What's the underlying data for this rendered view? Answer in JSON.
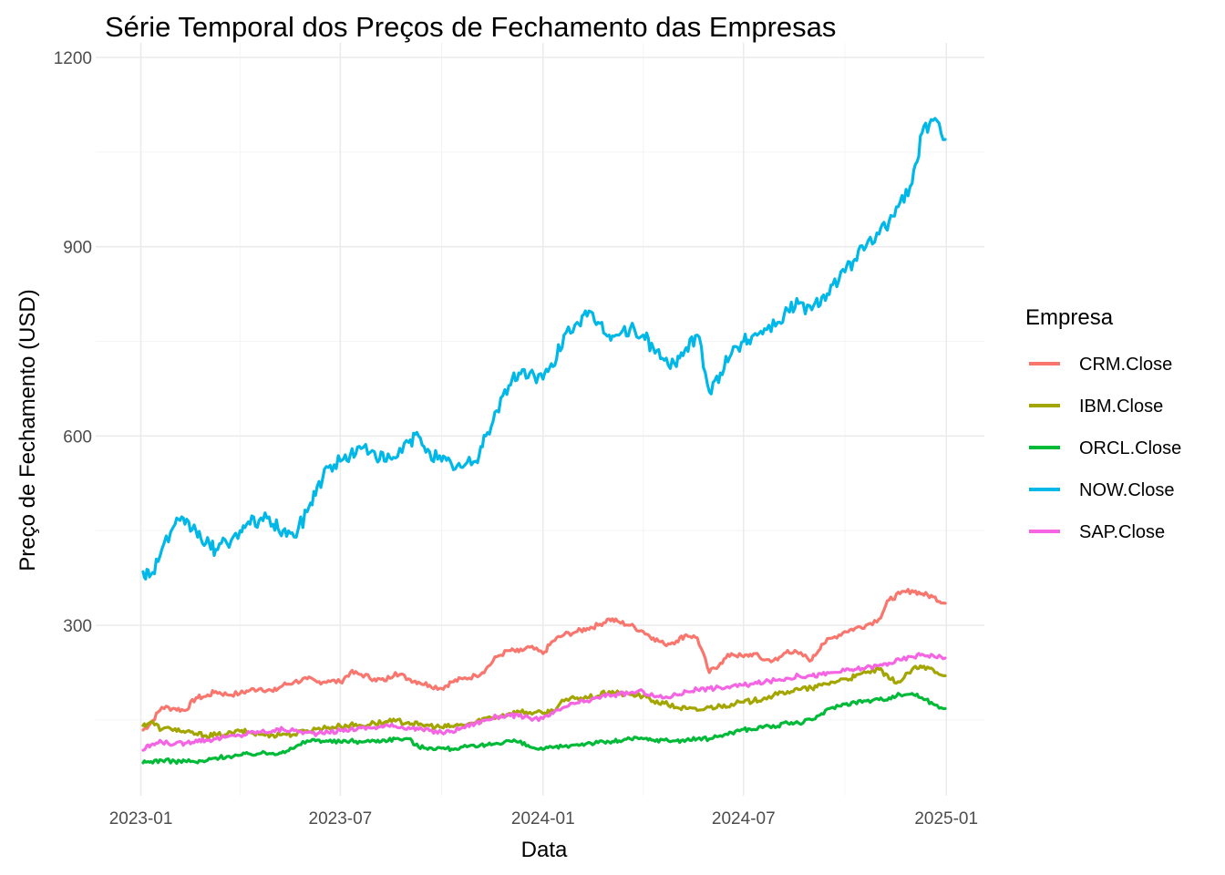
{
  "chart_data": {
    "type": "line",
    "title": "Série Temporal dos Preços de Fechamento das Empresas",
    "xlabel": "Data",
    "ylabel": "Preço de Fechamento (USD)",
    "xlim": [
      "2023-01-03",
      "2024-12-31"
    ],
    "ylim": [
      30,
      1200
    ],
    "x_ticks": [
      "2023-01",
      "2023-07",
      "2024-01",
      "2024-07",
      "2025-01"
    ],
    "y_ticks": [
      300,
      600,
      900,
      1200
    ],
    "grid": true,
    "legend": {
      "title": "Empresa",
      "position": "right"
    },
    "x": [
      "2023-01-03",
      "2023-01-10",
      "2023-01-20",
      "2023-02-01",
      "2023-02-10",
      "2023-02-20",
      "2023-03-01",
      "2023-03-10",
      "2023-03-20",
      "2023-04-01",
      "2023-04-10",
      "2023-04-20",
      "2023-05-01",
      "2023-05-10",
      "2023-05-20",
      "2023-06-01",
      "2023-06-10",
      "2023-06-20",
      "2023-07-01",
      "2023-07-10",
      "2023-07-20",
      "2023-08-01",
      "2023-08-10",
      "2023-08-20",
      "2023-09-01",
      "2023-09-10",
      "2023-09-20",
      "2023-10-01",
      "2023-10-10",
      "2023-10-20",
      "2023-11-01",
      "2023-11-10",
      "2023-11-20",
      "2023-12-01",
      "2023-12-10",
      "2023-12-20",
      "2024-01-01",
      "2024-01-10",
      "2024-01-20",
      "2024-02-01",
      "2024-02-10",
      "2024-02-20",
      "2024-03-01",
      "2024-03-10",
      "2024-03-20",
      "2024-04-01",
      "2024-04-10",
      "2024-04-20",
      "2024-05-01",
      "2024-05-10",
      "2024-05-20",
      "2024-05-31",
      "2024-06-10",
      "2024-06-20",
      "2024-07-01",
      "2024-07-10",
      "2024-07-20",
      "2024-08-01",
      "2024-08-10",
      "2024-08-20",
      "2024-09-01",
      "2024-09-10",
      "2024-09-20",
      "2024-10-01",
      "2024-10-10",
      "2024-10-20",
      "2024-11-01",
      "2024-11-10",
      "2024-11-20",
      "2024-12-01",
      "2024-12-10",
      "2024-12-20",
      "2024-12-31"
    ],
    "series": [
      {
        "name": "CRM.Close",
        "color": "#F8766D",
        "values": [
          134,
          145,
          170,
          168,
          165,
          185,
          187,
          195,
          190,
          192,
          197,
          200,
          195,
          205,
          210,
          215,
          210,
          212,
          210,
          225,
          222,
          215,
          212,
          225,
          215,
          210,
          205,
          200,
          210,
          215,
          220,
          230,
          250,
          260,
          258,
          265,
          255,
          275,
          285,
          290,
          295,
          300,
          310,
          305,
          300,
          290,
          280,
          270,
          275,
          285,
          280,
          225,
          240,
          255,
          250,
          255,
          245,
          245,
          260,
          255,
          245,
          270,
          280,
          290,
          295,
          300,
          310,
          340,
          350,
          355,
          350,
          345,
          335
        ]
      },
      {
        "name": "IBM.Close",
        "color": "#A3A500",
        "values": [
          141,
          147,
          135,
          136,
          130,
          128,
          125,
          126,
          127,
          132,
          130,
          127,
          126,
          128,
          127,
          133,
          136,
          138,
          140,
          142,
          141,
          145,
          146,
          148,
          146,
          142,
          141,
          138,
          140,
          142,
          146,
          153,
          155,
          160,
          163,
          162,
          160,
          165,
          180,
          185,
          185,
          188,
          195,
          192,
          190,
          188,
          180,
          176,
          170,
          168,
          165,
          170,
          172,
          175,
          178,
          180,
          185,
          190,
          195,
          198,
          200,
          205,
          210,
          215,
          218,
          225,
          230,
          215,
          210,
          230,
          233,
          230,
          220
        ]
      },
      {
        "name": "ORCL.Close",
        "color": "#00BA38",
        "values": [
          82,
          84,
          86,
          84,
          85,
          83,
          85,
          90,
          92,
          94,
          96,
          97,
          97,
          100,
          105,
          117,
          118,
          116,
          115,
          117,
          115,
          117,
          118,
          120,
          120,
          107,
          106,
          105,
          104,
          107,
          107,
          110,
          113,
          117,
          115,
          107,
          103,
          106,
          108,
          111,
          113,
          114,
          115,
          117,
          120,
          120,
          118,
          118,
          117,
          118,
          120,
          120,
          125,
          130,
          135,
          135,
          140,
          140,
          145,
          145,
          150,
          160,
          170,
          175,
          178,
          180,
          182,
          185,
          190,
          192,
          185,
          175,
          168
        ]
      },
      {
        "name": "NOW.Close",
        "color": "#00B8E7",
        "values": [
          385,
          380,
          420,
          460,
          460,
          450,
          430,
          420,
          430,
          450,
          460,
          470,
          460,
          450,
          440,
          480,
          520,
          550,
          560,
          570,
          580,
          575,
          560,
          565,
          590,
          600,
          575,
          560,
          555,
          550,
          560,
          600,
          640,
          680,
          700,
          700,
          690,
          710,
          760,
          780,
          790,
          780,
          760,
          760,
          770,
          760,
          740,
          720,
          710,
          740,
          760,
          670,
          700,
          730,
          750,
          760,
          770,
          780,
          800,
          810,
          800,
          820,
          840,
          860,
          880,
          900,
          920,
          940,
          970,
          1000,
          1080,
          1100,
          1070
        ]
      },
      {
        "name": "SAP.Close",
        "color": "#F564E3",
        "values": [
          102,
          110,
          115,
          112,
          113,
          118,
          118,
          120,
          123,
          125,
          130,
          131,
          133,
          135,
          133,
          130,
          128,
          130,
          133,
          135,
          137,
          138,
          140,
          140,
          138,
          135,
          133,
          130,
          132,
          138,
          145,
          150,
          155,
          158,
          156,
          153,
          152,
          160,
          170,
          177,
          180,
          185,
          190,
          190,
          193,
          195,
          188,
          185,
          190,
          195,
          198,
          200,
          201,
          203,
          205,
          207,
          210,
          213,
          216,
          220,
          220,
          222,
          225,
          228,
          230,
          233,
          236,
          240,
          245,
          250,
          254,
          252,
          248
        ]
      }
    ]
  }
}
